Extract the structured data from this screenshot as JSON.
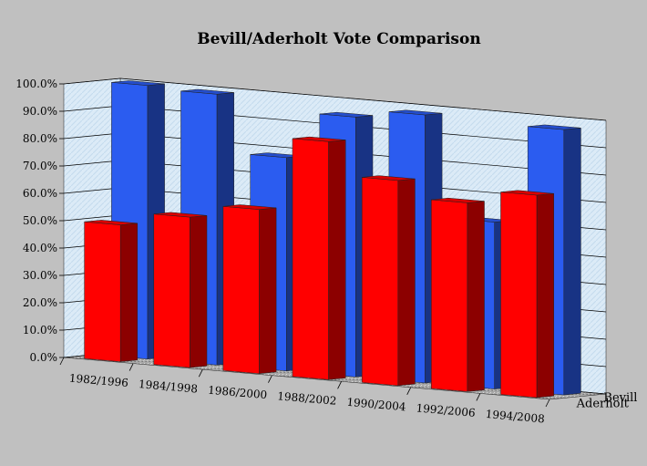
{
  "chart_data": {
    "type": "bar",
    "title": "Bevill/Aderholt Vote Comparison",
    "xlabel": "",
    "ylabel": "",
    "ylim": [
      0,
      100
    ],
    "ytick_step": 10,
    "ytick_labels": [
      "0.0%",
      "10.0%",
      "20.0%",
      "30.0%",
      "40.0%",
      "50.0%",
      "60.0%",
      "70.0%",
      "80.0%",
      "90.0%",
      "100.0%"
    ],
    "categories": [
      "1982/1996",
      "1984/1998",
      "1986/2000",
      "1988/2002",
      "1990/2004",
      "1992/2006",
      "1994/2008"
    ],
    "series": [
      {
        "name": "Bevill",
        "color": "#2b5cf0",
        "values": [
          100,
          99,
          78,
          95,
          98,
          61,
          97
        ]
      },
      {
        "name": "Aderholt",
        "color": "#ff0000",
        "values": [
          50,
          55,
          60,
          87,
          75,
          69,
          74
        ]
      }
    ],
    "grid": true,
    "projection": "3d"
  }
}
